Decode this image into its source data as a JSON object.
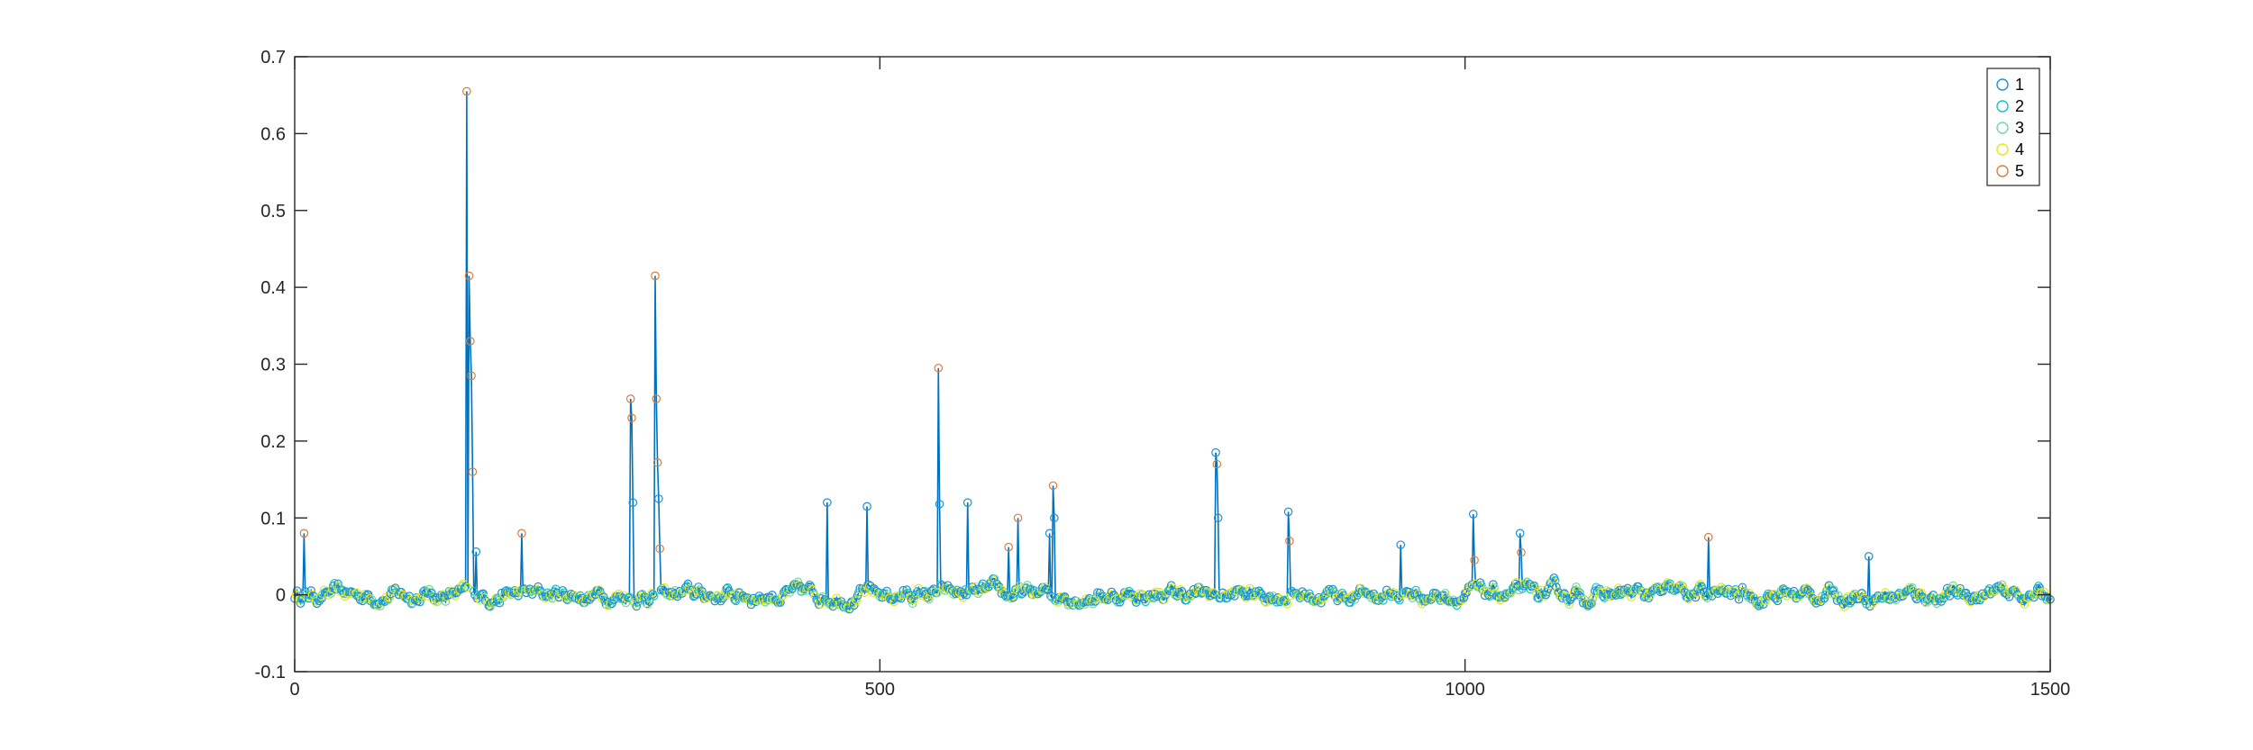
{
  "chart_data": {
    "type": "line",
    "title": "",
    "xlabel": "",
    "ylabel": "",
    "xlim": [
      0,
      1500
    ],
    "ylim": [
      -0.1,
      0.7
    ],
    "x_ticks": [
      0,
      500,
      1000,
      1500
    ],
    "y_ticks": [
      -0.1,
      0,
      0.1,
      0.2,
      0.3,
      0.4,
      0.5,
      0.6,
      0.7
    ],
    "x_tick_labels": [
      "0",
      "500",
      "1000",
      "1500"
    ],
    "y_tick_labels": [
      "-0.1",
      "0",
      "0.1",
      "0.2",
      "0.3",
      "0.4",
      "0.5",
      "0.6",
      "0.7"
    ],
    "grid": false,
    "legend_position": "top-right",
    "marker": "circle",
    "line_color": "#0072BD",
    "baseline": {
      "from": 0,
      "to": 1500,
      "level": 0.0,
      "noise": 0.012
    },
    "series": [
      {
        "name": "1",
        "color": "#1f8fd6"
      },
      {
        "name": "2",
        "color": "#13c4c4"
      },
      {
        "name": "3",
        "color": "#6fd9a0"
      },
      {
        "name": "4",
        "color": "#e6e619"
      },
      {
        "name": "5",
        "color": "#e07b39"
      }
    ],
    "peaks": [
      {
        "x": 8,
        "y": 0.08
      },
      {
        "x": 147,
        "y": 0.655
      },
      {
        "x": 149,
        "y": 0.415
      },
      {
        "x": 150,
        "y": 0.33
      },
      {
        "x": 151,
        "y": 0.285
      },
      {
        "x": 152,
        "y": 0.16
      },
      {
        "x": 155,
        "y": 0.056
      },
      {
        "x": 194,
        "y": 0.08
      },
      {
        "x": 287,
        "y": 0.255
      },
      {
        "x": 288,
        "y": 0.23
      },
      {
        "x": 289,
        "y": 0.12
      },
      {
        "x": 308,
        "y": 0.415
      },
      {
        "x": 309,
        "y": 0.255
      },
      {
        "x": 310,
        "y": 0.172
      },
      {
        "x": 311,
        "y": 0.125
      },
      {
        "x": 312,
        "y": 0.06
      },
      {
        "x": 455,
        "y": 0.12
      },
      {
        "x": 489,
        "y": 0.115
      },
      {
        "x": 550,
        "y": 0.295
      },
      {
        "x": 551,
        "y": 0.118
      },
      {
        "x": 575,
        "y": 0.12
      },
      {
        "x": 610,
        "y": 0.062
      },
      {
        "x": 618,
        "y": 0.1
      },
      {
        "x": 645,
        "y": 0.08
      },
      {
        "x": 648,
        "y": 0.142
      },
      {
        "x": 649,
        "y": 0.1
      },
      {
        "x": 787,
        "y": 0.185
      },
      {
        "x": 788,
        "y": 0.17
      },
      {
        "x": 789,
        "y": 0.1
      },
      {
        "x": 849,
        "y": 0.108
      },
      {
        "x": 850,
        "y": 0.07
      },
      {
        "x": 945,
        "y": 0.065
      },
      {
        "x": 1007,
        "y": 0.105
      },
      {
        "x": 1008,
        "y": 0.045
      },
      {
        "x": 1047,
        "y": 0.08
      },
      {
        "x": 1048,
        "y": 0.055
      },
      {
        "x": 1208,
        "y": 0.075
      },
      {
        "x": 1345,
        "y": 0.05
      }
    ]
  }
}
